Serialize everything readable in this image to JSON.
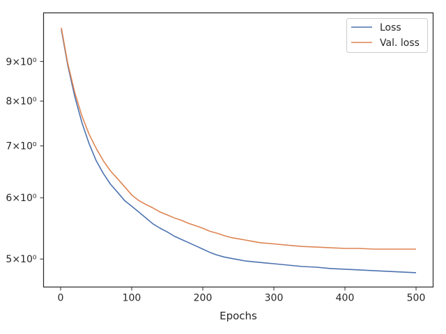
{
  "chart_data": {
    "type": "line",
    "title": "",
    "xlabel": "Epochs",
    "ylabel": "",
    "yscale": "log",
    "xlim": [
      -24,
      524
    ],
    "ylim": [
      4.6,
      10.4
    ],
    "grid": false,
    "legend_position": "top-right",
    "x_ticks": [
      {
        "value": 0,
        "label": "0"
      },
      {
        "value": 100,
        "label": "100"
      },
      {
        "value": 200,
        "label": "200"
      },
      {
        "value": 300,
        "label": "300"
      },
      {
        "value": 400,
        "label": "400"
      },
      {
        "value": 500,
        "label": "500"
      }
    ],
    "y_ticks": [
      {
        "value": 5,
        "label": "5×10⁰"
      },
      {
        "value": 6,
        "label": "6×10⁰"
      },
      {
        "value": 7,
        "label": "7×10⁰"
      },
      {
        "value": 8,
        "label": "8×10⁰"
      },
      {
        "value": 9,
        "label": "9×10⁰"
      }
    ],
    "x": [
      1,
      10,
      20,
      30,
      40,
      50,
      60,
      70,
      80,
      90,
      100,
      110,
      120,
      130,
      140,
      150,
      160,
      170,
      180,
      190,
      200,
      210,
      220,
      230,
      240,
      250,
      260,
      270,
      280,
      290,
      300,
      320,
      340,
      360,
      380,
      400,
      420,
      440,
      460,
      480,
      500
    ],
    "series": [
      {
        "name": "Loss",
        "color": "#4c72b0",
        "values": [
          9.9,
          8.9,
          8.1,
          7.5,
          7.05,
          6.7,
          6.45,
          6.25,
          6.1,
          5.95,
          5.85,
          5.75,
          5.65,
          5.55,
          5.48,
          5.42,
          5.35,
          5.3,
          5.25,
          5.2,
          5.15,
          5.1,
          5.06,
          5.03,
          5.01,
          4.99,
          4.97,
          4.96,
          4.95,
          4.94,
          4.93,
          4.91,
          4.89,
          4.88,
          4.86,
          4.85,
          4.84,
          4.83,
          4.82,
          4.81,
          4.8
        ]
      },
      {
        "name": "Val. loss",
        "color": "#dd8452",
        "values": [
          9.95,
          8.95,
          8.2,
          7.65,
          7.25,
          6.95,
          6.7,
          6.5,
          6.35,
          6.2,
          6.05,
          5.95,
          5.88,
          5.82,
          5.75,
          5.7,
          5.65,
          5.61,
          5.56,
          5.52,
          5.48,
          5.43,
          5.4,
          5.36,
          5.33,
          5.31,
          5.29,
          5.27,
          5.25,
          5.24,
          5.23,
          5.21,
          5.19,
          5.18,
          5.17,
          5.16,
          5.16,
          5.15,
          5.15,
          5.15,
          5.15
        ]
      }
    ]
  }
}
